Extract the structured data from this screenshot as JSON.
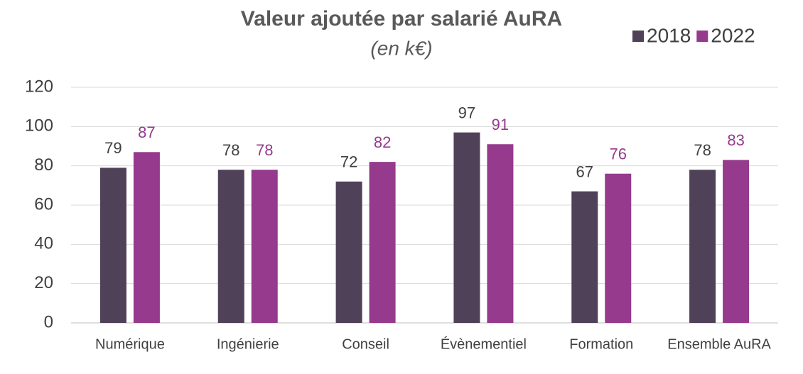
{
  "chart_data": {
    "type": "bar",
    "title": "Valeur ajoutée par salarié AuRA",
    "subtitle": "(en k€)",
    "categories": [
      "Numérique",
      "Ingénierie",
      "Conseil",
      "Évènementiel",
      "Formation",
      "Ensemble AuRA"
    ],
    "series": [
      {
        "name": "2018",
        "color": "#4f4157",
        "values": [
          79,
          78,
          72,
          97,
          67,
          78
        ]
      },
      {
        "name": "2022",
        "color": "#953a8c",
        "values": [
          87,
          78,
          82,
          91,
          76,
          83
        ]
      }
    ],
    "ylim": [
      0,
      120
    ],
    "yticks": [
      0,
      20,
      40,
      60,
      80,
      100,
      120
    ],
    "grid": true,
    "legend": "top-right"
  }
}
